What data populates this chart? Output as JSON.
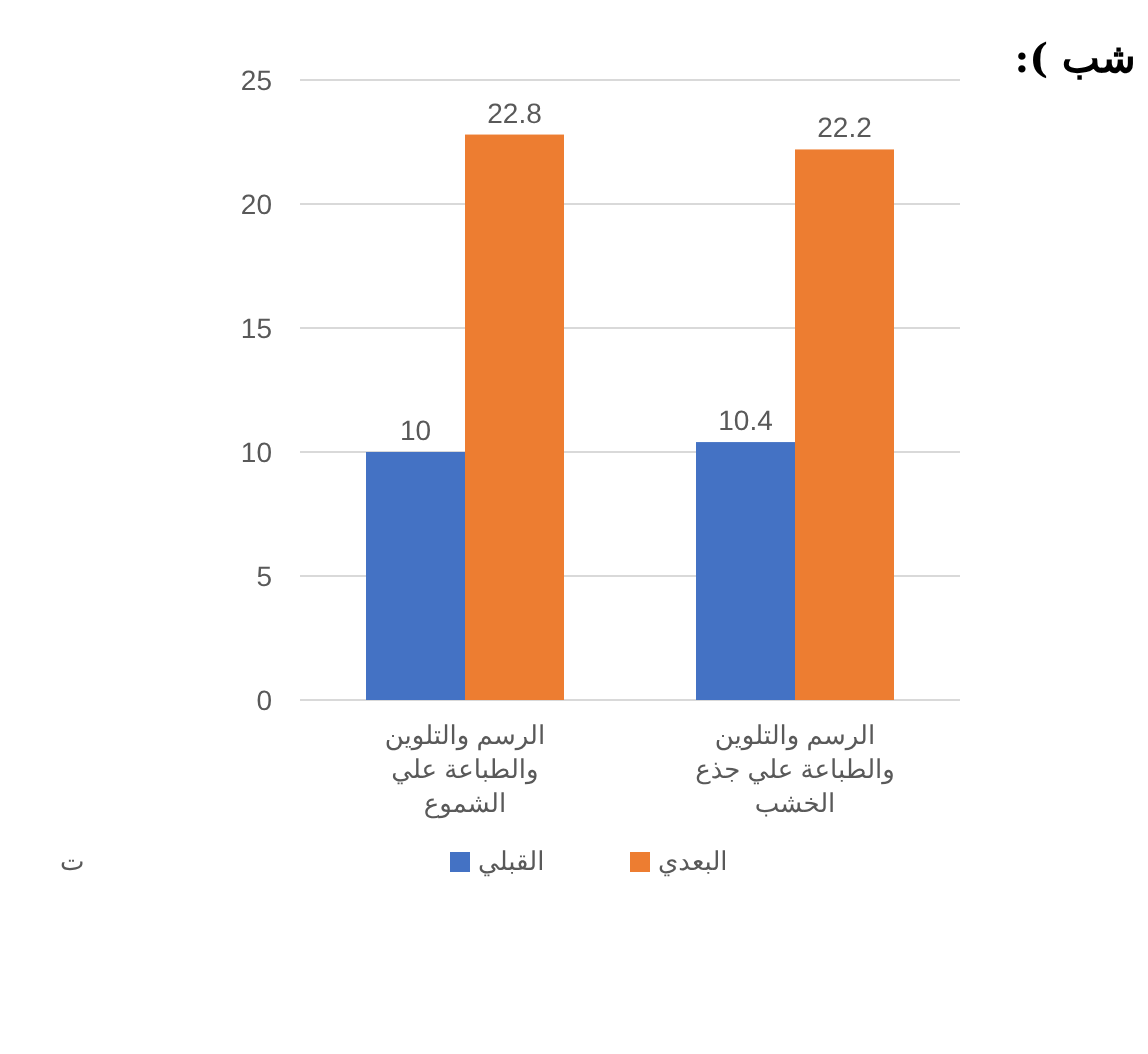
{
  "chart_data": {
    "type": "bar",
    "categories": [
      "الرسم والتلوين والطباعة علي الشموع",
      "الرسم والتلوين والطباعة علي جذع الخشب"
    ],
    "series": [
      {
        "name": "القبلي",
        "color": "#4472c4",
        "values": [
          10,
          10.4
        ]
      },
      {
        "name": "البعدي",
        "color": "#ed7d31",
        "values": [
          22.8,
          22.2
        ]
      }
    ],
    "ylim": [
      0,
      25
    ],
    "yticks": [
      0,
      5,
      10,
      15,
      20,
      25
    ],
    "grid": "y",
    "legend": "bottom",
    "data_labels": true,
    "annotations": [
      "شب ):",
      "ت"
    ]
  }
}
